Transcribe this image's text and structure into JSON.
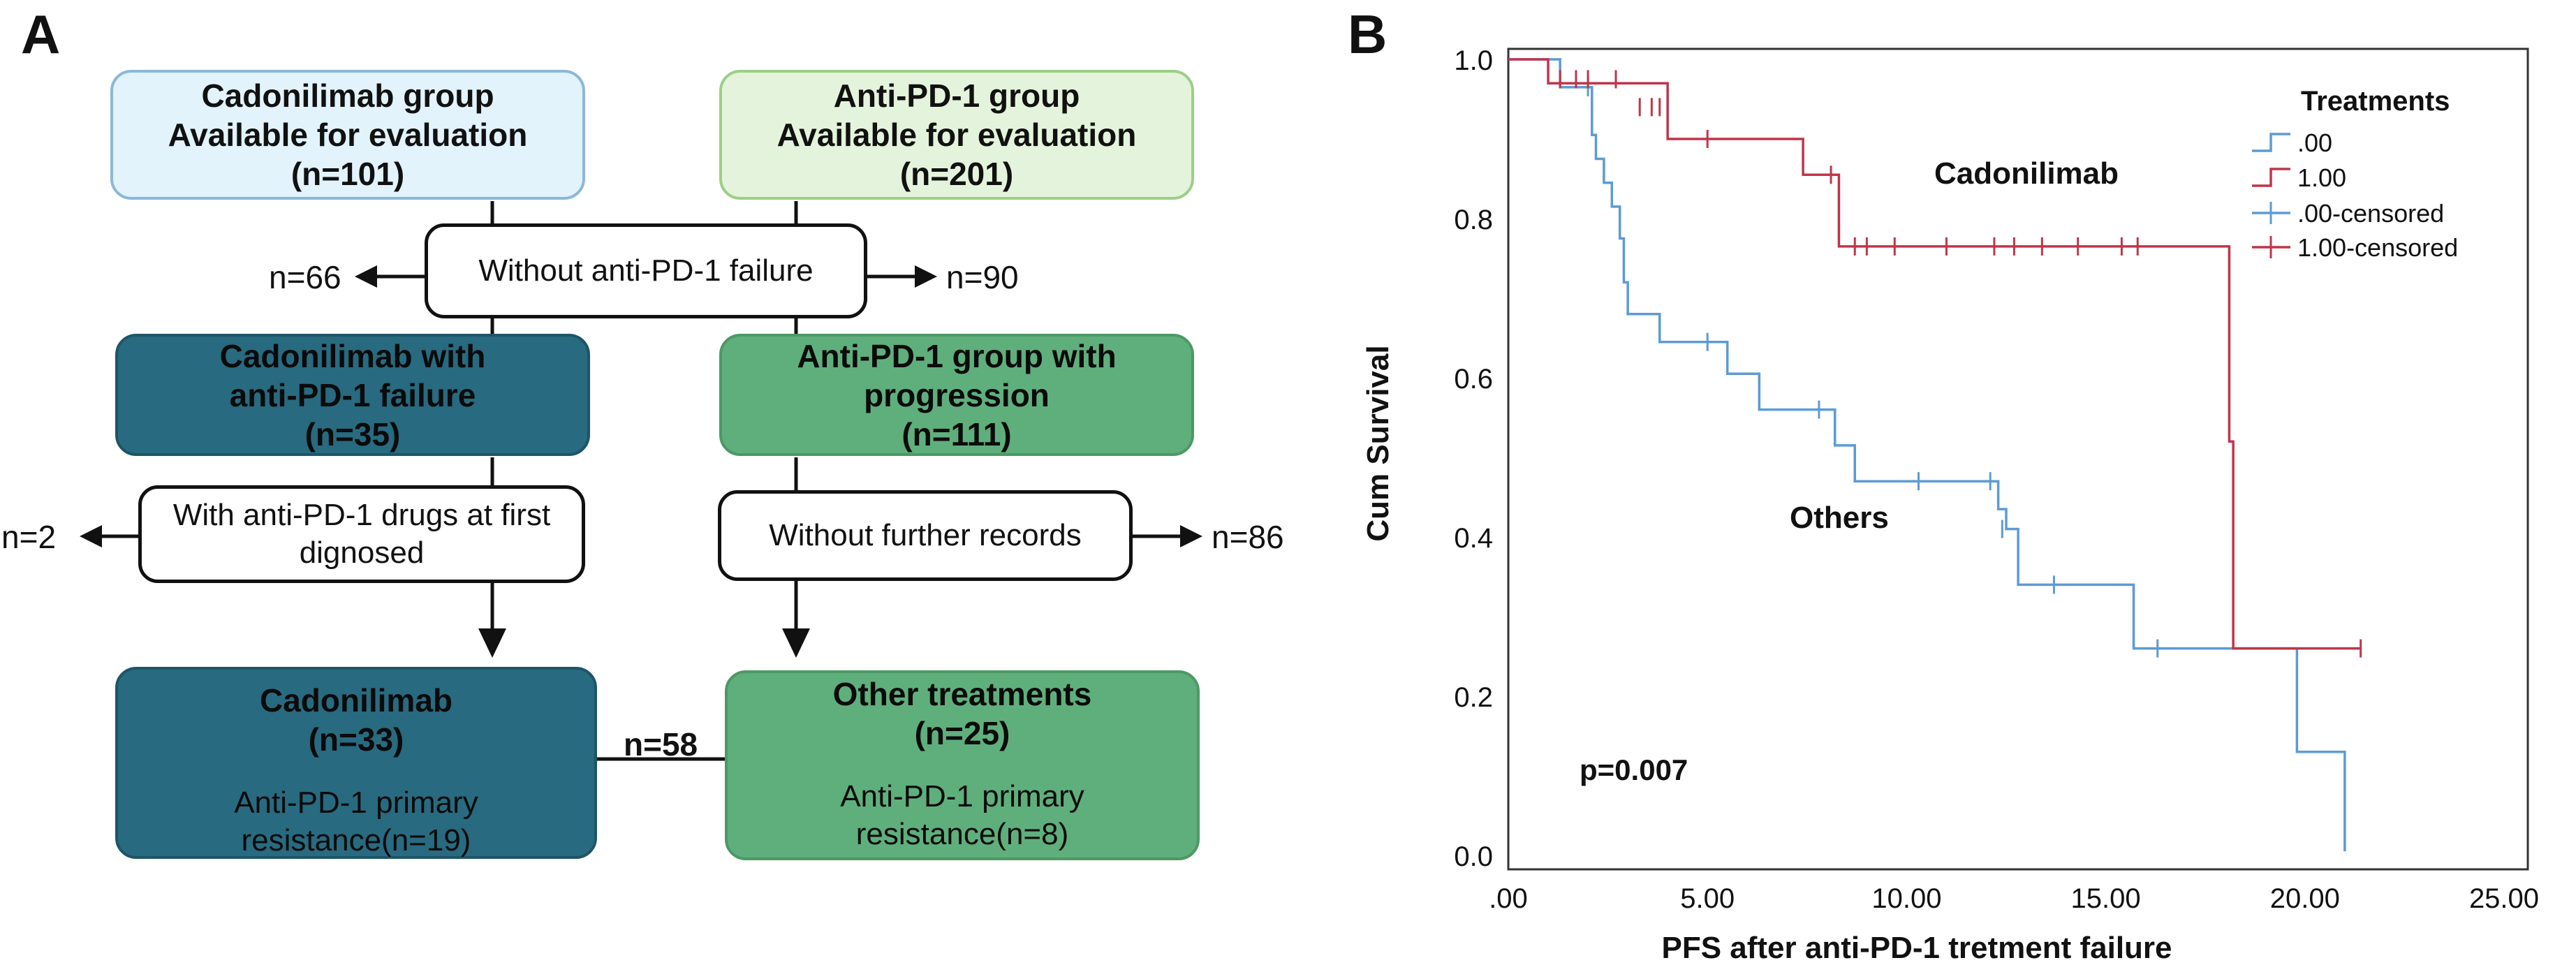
{
  "panel_a": {
    "letter": "A",
    "box_cado_avail": {
      "line1": "Cadonilimab group",
      "line2": "Available for evaluation",
      "line3": "(n=101)"
    },
    "box_anti_avail": {
      "line1": "Anti-PD-1 group",
      "line2": "Available for evaluation",
      "line3": "(n=201)"
    },
    "box_without_failure": "Without anti-PD-1 failure",
    "excluded_left_1": "n=66",
    "excluded_right_1": "n=90",
    "box_cado_failure": {
      "line1": "Cadonilimab with",
      "line2": "anti-PD-1 failure",
      "line3": "(n=35)"
    },
    "box_anti_progression": {
      "line1": "Anti-PD-1 group with",
      "line2": "progression",
      "line3": "(n=111)"
    },
    "box_first_diagnosed": {
      "line1": "With anti-PD-1 drugs at first",
      "line2": "dignosed"
    },
    "excluded_left_2": "n=2",
    "box_without_records": "Without further records",
    "excluded_right_2": "n=86",
    "box_cado_final": {
      "title": "Cadonilimab",
      "n": "(n=33)",
      "sub1": "Anti-PD-1 primary",
      "sub2": "resistance(n=19)"
    },
    "box_other_final": {
      "title": "Other treatments",
      "n": "(n=25)",
      "sub1": "Anti-PD-1 primary",
      "sub2": "resistance(n=8)"
    },
    "total_label": "n=58"
  },
  "panel_b": {
    "letter": "B",
    "cadonilimab_label": "Cadonilimab",
    "others_label": "Others",
    "pvalue": "p=0.007"
  },
  "chart_data": {
    "type": "line",
    "subtype": "kaplan-meier-step",
    "xlabel": "PFS after anti-PD-1 tretment failure",
    "ylabel": "Cum Survival",
    "xlim": [
      0,
      25
    ],
    "ylim": [
      0,
      1.0
    ],
    "xticks": [
      0,
      5,
      10,
      15,
      20,
      25
    ],
    "xtick_labels": [
      ".00",
      "5.00",
      "10.00",
      "15.00",
      "20.00",
      "25.00"
    ],
    "yticks": [
      0,
      0.2,
      0.4,
      0.6,
      0.8,
      1.0
    ],
    "ytick_labels": [
      "0.0",
      "0.2",
      "0.4",
      "0.6",
      "0.8",
      "1.0"
    ],
    "legend": {
      "title": "Treatments",
      "position": "top-right",
      "entries": [
        ".00",
        "1.00",
        ".00-censored",
        "1.00-censored"
      ]
    },
    "colors": {
      "group_0": "#5b9bd5",
      "group_1": "#c0354a"
    },
    "series": [
      {
        "name": "1.00",
        "color": "#c0354a",
        "steps": [
          [
            0,
            1.0
          ],
          [
            1.0,
            0.97
          ],
          [
            4.0,
            0.9
          ],
          [
            7.4,
            0.855
          ],
          [
            8.3,
            0.765
          ],
          [
            18.1,
            0.52
          ],
          [
            18.2,
            0.26
          ],
          [
            21.4,
            0.26
          ]
        ],
        "censored": [
          [
            1.3,
            0.975
          ],
          [
            1.7,
            0.975
          ],
          [
            2.0,
            0.975
          ],
          [
            2.7,
            0.975
          ],
          [
            3.3,
            0.94
          ],
          [
            3.6,
            0.94
          ],
          [
            3.8,
            0.94
          ],
          [
            5.0,
            0.9
          ],
          [
            8.1,
            0.855
          ],
          [
            8.7,
            0.765
          ],
          [
            9.0,
            0.765
          ],
          [
            9.7,
            0.765
          ],
          [
            11.0,
            0.765
          ],
          [
            12.2,
            0.765
          ],
          [
            12.7,
            0.765
          ],
          [
            13.4,
            0.765
          ],
          [
            14.3,
            0.765
          ],
          [
            15.4,
            0.765
          ],
          [
            15.8,
            0.765
          ],
          [
            21.4,
            0.26
          ]
        ]
      },
      {
        "name": ".00",
        "color": "#5b9bd5",
        "steps": [
          [
            0,
            1.0
          ],
          [
            1.3,
            0.965
          ],
          [
            2.1,
            0.905
          ],
          [
            2.2,
            0.875
          ],
          [
            2.4,
            0.845
          ],
          [
            2.6,
            0.815
          ],
          [
            2.8,
            0.775
          ],
          [
            2.9,
            0.72
          ],
          [
            3.0,
            0.68
          ],
          [
            3.8,
            0.645
          ],
          [
            5.5,
            0.605
          ],
          [
            6.3,
            0.56
          ],
          [
            8.2,
            0.515
          ],
          [
            8.7,
            0.47
          ],
          [
            12.3,
            0.435
          ],
          [
            12.5,
            0.41
          ],
          [
            12.8,
            0.34
          ],
          [
            15.7,
            0.26
          ],
          [
            19.8,
            0.13
          ],
          [
            21.0,
            0.005
          ]
        ],
        "censored": [
          [
            2.0,
            0.965
          ],
          [
            5.0,
            0.645
          ],
          [
            7.8,
            0.56
          ],
          [
            10.3,
            0.47
          ],
          [
            12.1,
            0.47
          ],
          [
            12.4,
            0.41
          ],
          [
            13.7,
            0.34
          ],
          [
            16.3,
            0.26
          ]
        ]
      }
    ]
  }
}
